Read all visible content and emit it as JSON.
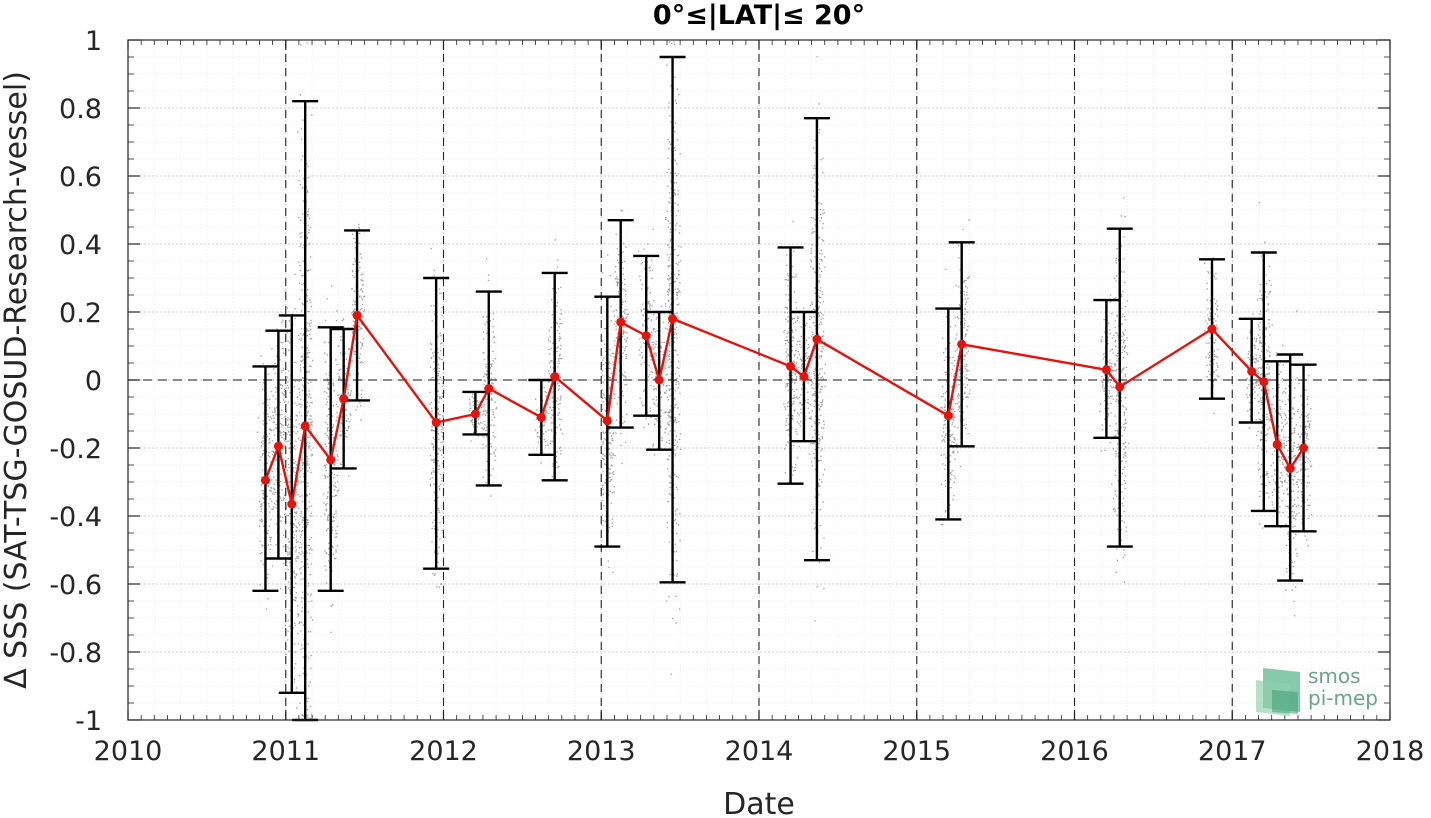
{
  "chart_data": {
    "type": "line",
    "title": "0°≤|LAT|≤ 20°",
    "xlabel": "Date",
    "ylabel": "Δ SSS (SAT-TSG-GOSUD-Research-vessel)",
    "xlim": [
      "2010-01-01",
      "2018-01-01"
    ],
    "ylim": [
      -1,
      1
    ],
    "x_tick_labels": [
      "2010",
      "2011",
      "2012",
      "2013",
      "2014",
      "2015",
      "2016",
      "2017",
      "2018"
    ],
    "y_tick_labels": [
      "1",
      "0.8",
      "0.6",
      "0.4",
      "0.2",
      "0",
      "-0.2",
      "-0.4",
      "-0.6",
      "-0.8",
      "-1"
    ],
    "grid": true,
    "reference_line_y": 0,
    "year_separators": [
      "2011",
      "2012",
      "2013",
      "2014",
      "2015",
      "2016",
      "2017"
    ],
    "colors": {
      "mean_line": "#e8120c",
      "error_bar": "#000000",
      "scatter": "#8c8c8c",
      "reference": "#444444"
    },
    "series": [
      {
        "x": [
          "2010-11-15",
          "2010-12-15",
          "2011-01-15",
          "2011-02-15",
          "2011-04-15",
          "2011-05-15",
          "2011-06-15",
          "2011-12-15",
          "2012-03-15",
          "2012-04-15",
          "2012-08-15",
          "2012-09-15",
          "2013-01-15",
          "2013-02-15",
          "2013-04-15",
          "2013-05-15",
          "2013-06-15",
          "2014-03-15",
          "2014-04-15",
          "2014-05-15",
          "2015-03-15",
          "2015-04-15",
          "2016-03-15",
          "2016-04-15",
          "2016-11-15",
          "2017-02-15",
          "2017-03-15",
          "2017-04-15",
          "2017-05-15",
          "2017-06-15"
        ],
        "y": [
          -0.295,
          -0.195,
          -0.365,
          -0.135,
          -0.235,
          -0.055,
          0.19,
          -0.125,
          -0.1,
          -0.025,
          -0.11,
          0.01,
          -0.12,
          0.17,
          0.13,
          0.0,
          0.18,
          0.04,
          0.01,
          0.12,
          -0.105,
          0.105,
          0.03,
          -0.02,
          0.15,
          0.025,
          -0.005,
          -0.19,
          -0.26,
          -0.2
        ],
        "err_low": [
          -0.62,
          -0.525,
          -0.92,
          -1.0,
          -0.62,
          -0.26,
          -0.06,
          -0.555,
          -0.16,
          -0.31,
          -0.22,
          -0.295,
          -0.49,
          -0.14,
          -0.105,
          -0.205,
          -0.595,
          -0.305,
          -0.18,
          -0.53,
          -0.41,
          -0.195,
          -0.17,
          -0.49,
          -0.055,
          -0.125,
          -0.385,
          -0.43,
          -0.59,
          -0.445
        ],
        "err_high": [
          0.04,
          0.145,
          0.19,
          0.82,
          0.155,
          0.15,
          0.44,
          0.3,
          -0.035,
          0.26,
          0.0,
          0.315,
          0.245,
          0.47,
          0.365,
          0.2,
          0.95,
          0.39,
          0.2,
          0.77,
          0.21,
          0.405,
          0.235,
          0.445,
          0.355,
          0.18,
          0.375,
          0.055,
          0.075,
          0.045
        ]
      }
    ]
  },
  "logo": {
    "line1": "smos",
    "line2": "pi-mep"
  }
}
